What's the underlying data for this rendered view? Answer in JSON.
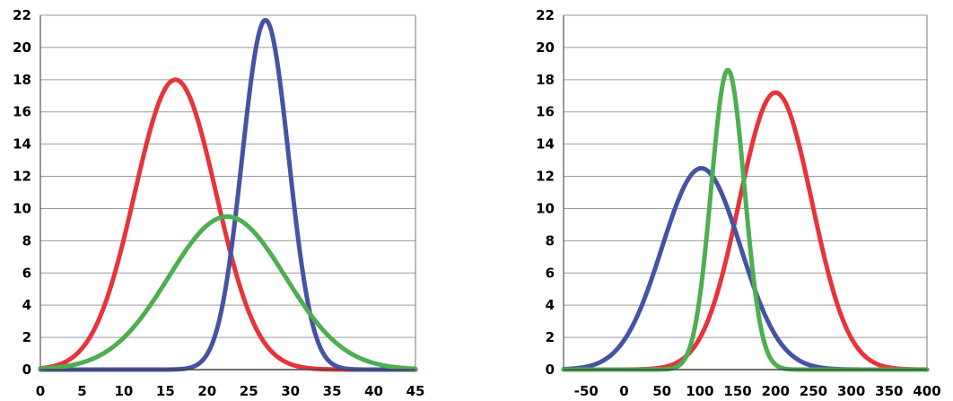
{
  "chart_data": [
    {
      "type": "line",
      "grid": true,
      "xlim": [
        0,
        45
      ],
      "ylim": [
        0,
        22
      ],
      "x_ticks": [
        "0",
        "5",
        "10",
        "15",
        "20",
        "25",
        "30",
        "35",
        "40",
        "45"
      ],
      "y_ticks": [
        "0",
        "2",
        "4",
        "6",
        "8",
        "10",
        "12",
        "14",
        "16",
        "18",
        "20",
        "22"
      ],
      "series": [
        {
          "color": "#e8333b",
          "curve": "gaussian",
          "mean": 16.2,
          "sd": 4.9,
          "peak": 18.0,
          "points": [
            [
              0,
              0.7
            ],
            [
              5,
              4.2
            ],
            [
              10,
              11.0
            ],
            [
              15,
              17.5
            ],
            [
              16.2,
              18.0
            ],
            [
              20,
              13.9
            ],
            [
              25,
              3.6
            ],
            [
              30,
              0.6
            ],
            [
              35,
              0.04
            ],
            [
              45,
              0
            ]
          ]
        },
        {
          "color": "#4652a4",
          "curve": "gaussian",
          "mean": 27.0,
          "sd": 2.8,
          "peak": 21.7,
          "points": [
            [
              15,
              0
            ],
            [
              20,
              0.6
            ],
            [
              22,
              4.5
            ],
            [
              25,
              16.0
            ],
            [
              27,
              21.7
            ],
            [
              30,
              12.0
            ],
            [
              33,
              2.2
            ],
            [
              35,
              0.4
            ],
            [
              40,
              0
            ]
          ]
        },
        {
          "color": "#4caf50",
          "curve": "gaussian",
          "mean": 22.4,
          "sd": 7.0,
          "peak": 9.5,
          "points": [
            [
              0,
              0.06
            ],
            [
              5,
              0.4
            ],
            [
              10,
              1.9
            ],
            [
              15,
              5.2
            ],
            [
              20,
              8.9
            ],
            [
              22.4,
              9.5
            ],
            [
              25,
              8.9
            ],
            [
              30,
              5.6
            ],
            [
              35,
              1.9
            ],
            [
              40,
              0.4
            ],
            [
              45,
              0.05
            ]
          ]
        }
      ]
    },
    {
      "type": "line",
      "grid": true,
      "xlim": [
        -80,
        400
      ],
      "ylim": [
        0,
        22
      ],
      "x_ticks": [
        "-50",
        "0",
        "50",
        "100",
        "150",
        "200",
        "250",
        "300",
        "350",
        "400"
      ],
      "y_ticks": [
        "0",
        "2",
        "4",
        "6",
        "8",
        "10",
        "12",
        "14",
        "16",
        "18",
        "20",
        "22"
      ],
      "series": [
        {
          "color": "#e8333b",
          "curve": "gaussian",
          "mean": 200,
          "sd": 48,
          "peak": 17.2,
          "points": [
            [
              50,
              0.1
            ],
            [
              100,
              1.9
            ],
            [
              150,
              10.3
            ],
            [
              200,
              17.2
            ],
            [
              250,
              10.3
            ],
            [
              300,
              2.0
            ],
            [
              350,
              0.1
            ],
            [
              400,
              0
            ]
          ]
        },
        {
          "color": "#4652a4",
          "curve": "gaussian",
          "mean": 102,
          "sd": 52,
          "peak": 12.5,
          "points": [
            [
              -80,
              0.2
            ],
            [
              -50,
              1.1
            ],
            [
              0,
              5.7
            ],
            [
              50,
              10.1
            ],
            [
              102,
              12.5
            ],
            [
              150,
              10.3
            ],
            [
              200,
              2.4
            ],
            [
              250,
              0.2
            ],
            [
              300,
              0
            ]
          ]
        },
        {
          "color": "#4caf50",
          "curve": "gaussian",
          "mean": 137,
          "sd": 22,
          "peak": 18.6,
          "points": [
            [
              50,
              0.04
            ],
            [
              100,
              4.4
            ],
            [
              137,
              18.6
            ],
            [
              175,
              4.1
            ],
            [
              200,
              0.5
            ],
            [
              250,
              0
            ]
          ]
        }
      ]
    }
  ]
}
